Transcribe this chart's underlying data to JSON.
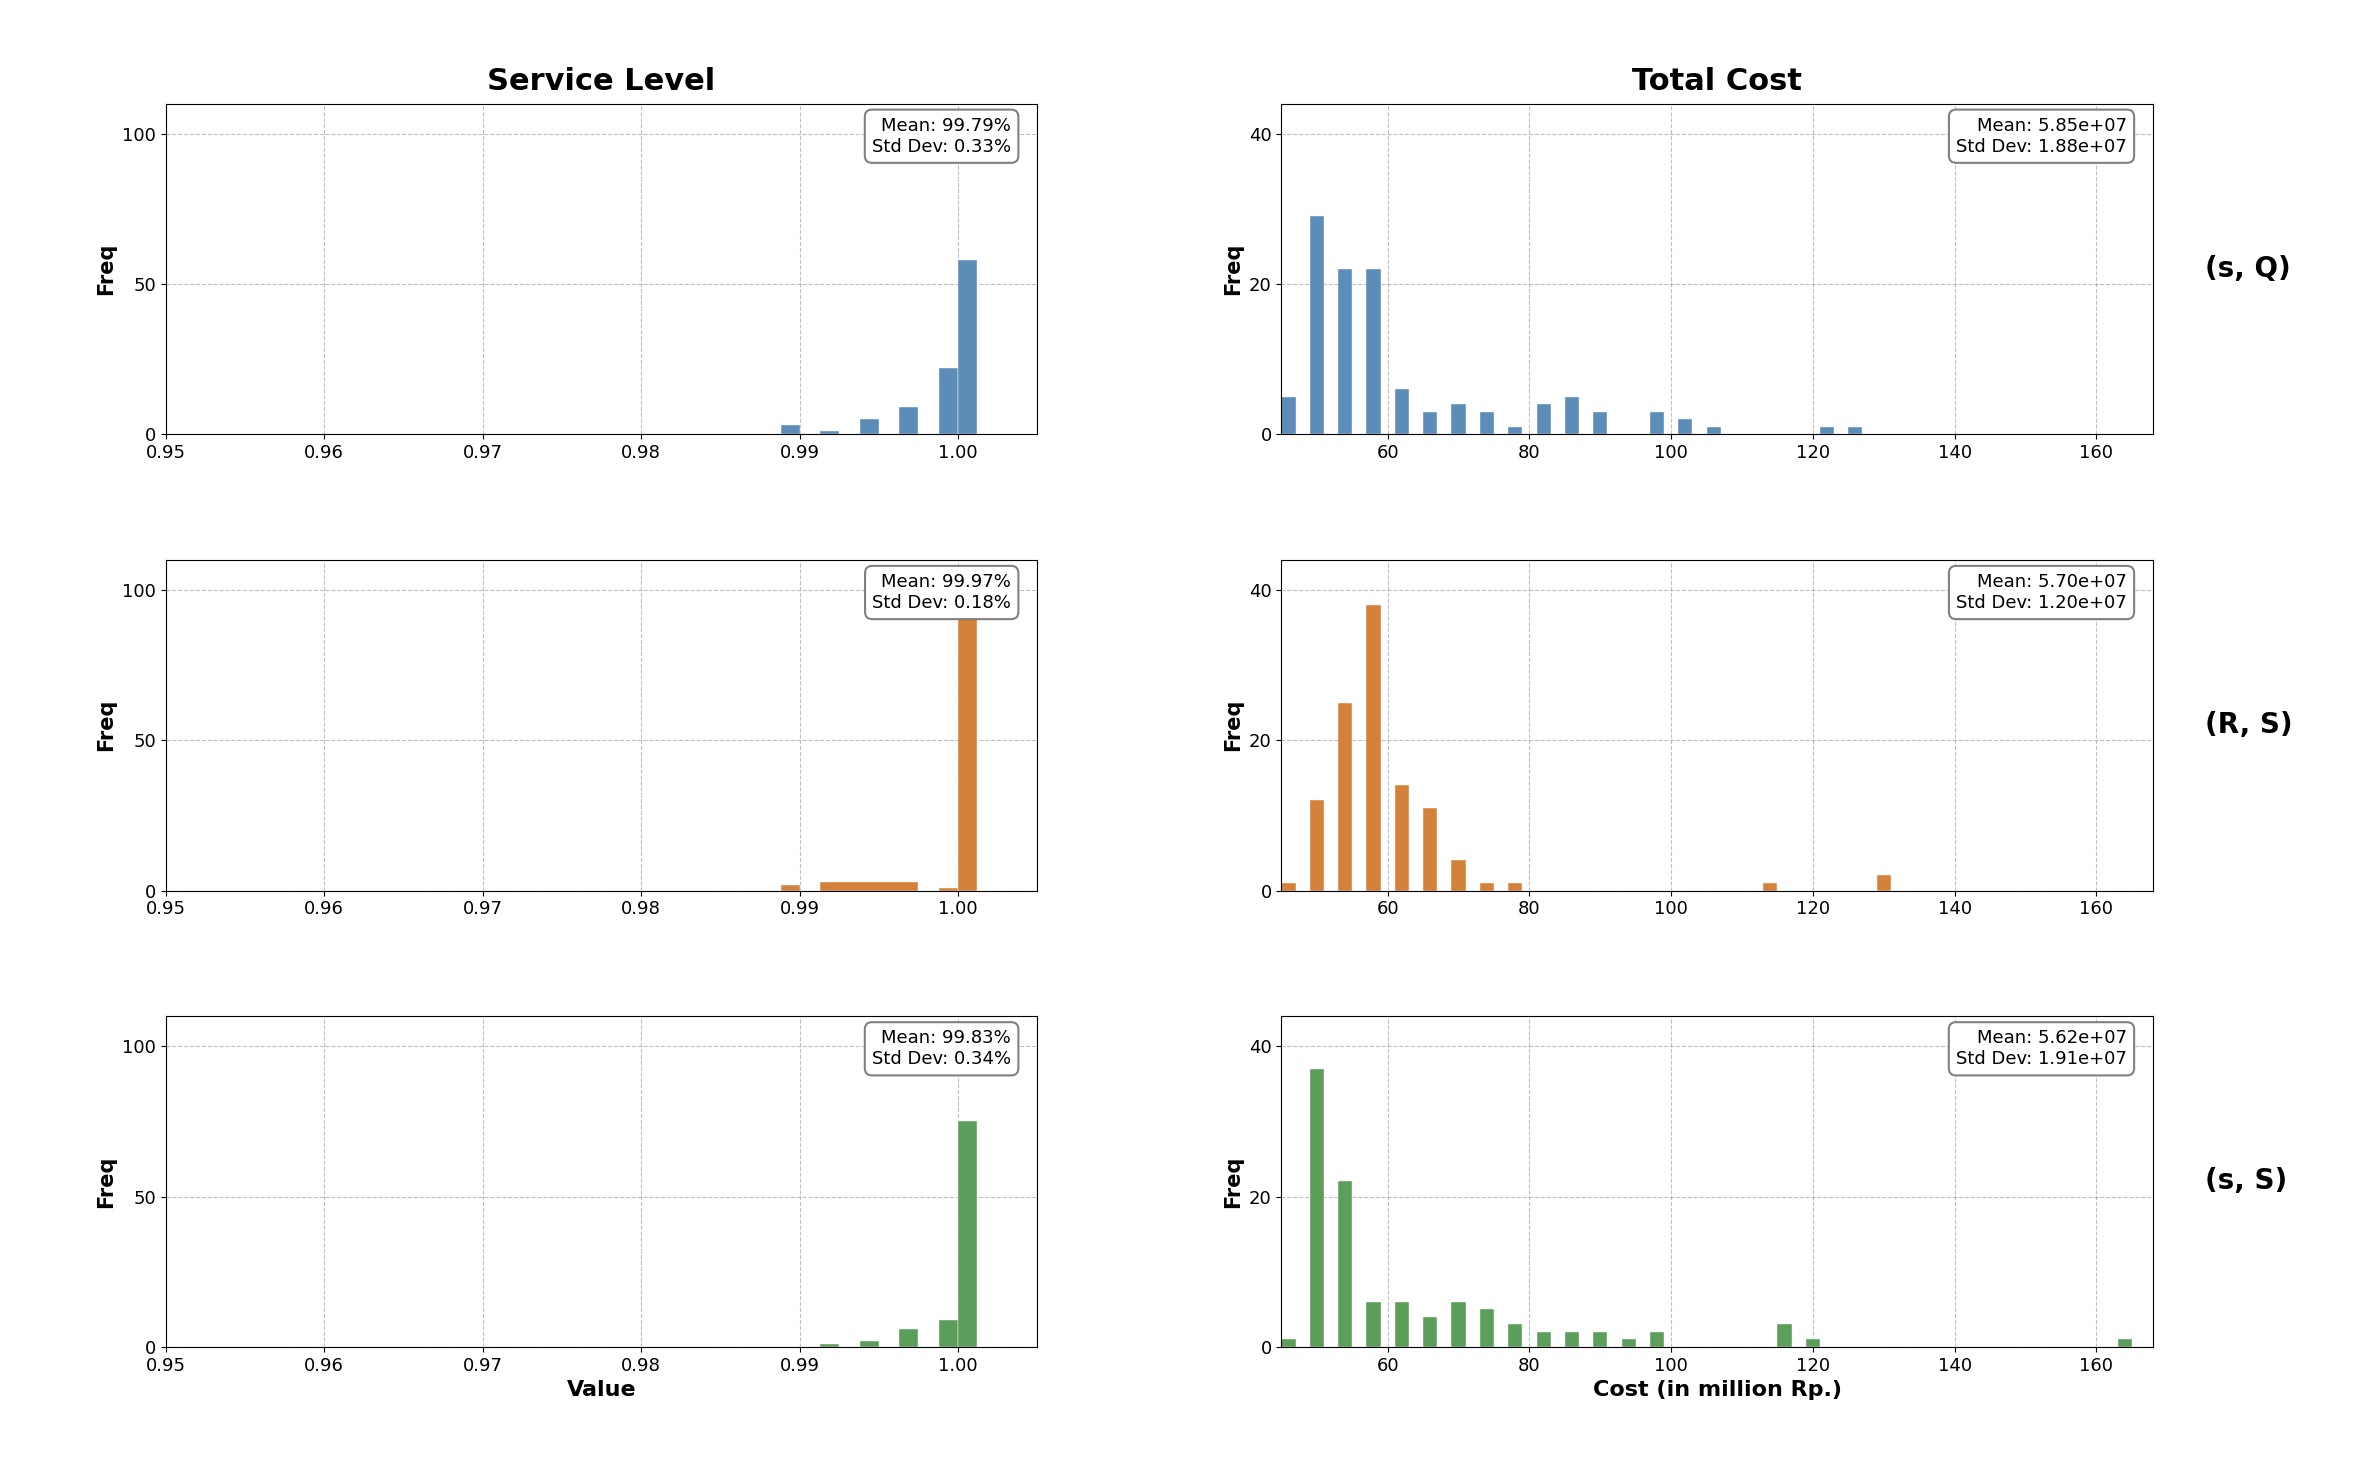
{
  "col_titles": [
    "Service Level",
    "Total Cost"
  ],
  "row_labels": [
    "(s, Q)",
    "(R, S)",
    "(s, S)"
  ],
  "colors": [
    "#5b8db8",
    "#d4813a",
    "#5a9e5a"
  ],
  "sl_xlim": [
    0.95,
    1.005
  ],
  "sl_xticks": [
    0.95,
    0.96,
    0.97,
    0.98,
    0.99,
    1.0
  ],
  "sl_ylim": [
    0,
    110
  ],
  "sl_yticks": [
    0,
    50,
    100
  ],
  "cost_xlim": [
    45,
    168
  ],
  "cost_xticks": [
    60,
    80,
    100,
    120,
    140,
    160
  ],
  "cost_ylim": [
    0,
    44
  ],
  "cost_yticks": [
    0,
    20,
    40
  ],
  "xlabel_sl": "Value",
  "xlabel_cost": "Cost (in million Rp.)",
  "ylabel": "Freq",
  "sl_annotations": [
    "Mean: 99.79%\nStd Dev: 0.33%",
    "Mean: 99.97%\nStd Dev: 0.18%",
    "Mean: 99.83%\nStd Dev: 0.34%"
  ],
  "cost_annotations": [
    "Mean: 5.85e+07\nStd Dev: 1.88e+07",
    "Mean: 5.70e+07\nStd Dev: 1.20e+07",
    "Mean: 5.62e+07\nStd Dev: 1.91e+07"
  ],
  "sl_hist_data": [
    {
      "bin_edges": [
        0.95,
        0.9525,
        0.955,
        0.9575,
        0.96,
        0.9625,
        0.965,
        0.9675,
        0.97,
        0.9725,
        0.975,
        0.9775,
        0.98,
        0.9825,
        0.985,
        0.9875,
        0.9888,
        0.99,
        0.9913,
        0.9925,
        0.9938,
        0.995,
        0.9963,
        0.9975,
        0.9988,
        1.0,
        1.0012
      ],
      "heights": [
        0,
        0,
        0,
        0,
        0,
        0,
        0,
        0,
        0,
        0,
        0,
        0,
        0,
        0,
        0,
        0,
        3,
        0,
        1,
        0,
        5,
        0,
        9,
        0,
        22,
        58,
        0
      ]
    },
    {
      "bin_edges": [
        0.95,
        0.9525,
        0.955,
        0.9575,
        0.96,
        0.9625,
        0.965,
        0.9675,
        0.97,
        0.9725,
        0.975,
        0.9775,
        0.98,
        0.9825,
        0.985,
        0.9875,
        0.9888,
        0.99,
        0.9913,
        0.9975,
        0.9988,
        1.0,
        1.0012
      ],
      "heights": [
        0,
        0,
        0,
        0,
        0,
        0,
        0,
        0,
        0,
        0,
        0,
        0,
        0,
        0,
        0,
        0,
        2,
        0,
        3,
        0,
        1,
        100,
        0
      ]
    },
    {
      "bin_edges": [
        0.95,
        0.9525,
        0.955,
        0.9575,
        0.96,
        0.9625,
        0.965,
        0.9675,
        0.97,
        0.9725,
        0.975,
        0.9775,
        0.98,
        0.9825,
        0.985,
        0.9875,
        0.9888,
        0.99,
        0.9913,
        0.9925,
        0.9938,
        0.995,
        0.9963,
        0.9975,
        0.9988,
        1.0,
        1.0012
      ],
      "heights": [
        0,
        0,
        0,
        0,
        0,
        0,
        0,
        0,
        0,
        0,
        0,
        0,
        0,
        0,
        0,
        0,
        0,
        0,
        1,
        0,
        2,
        0,
        6,
        0,
        9,
        75,
        0
      ]
    }
  ],
  "cost_hist_data": [
    {
      "bin_edges": [
        45,
        47,
        49,
        51,
        53,
        55,
        57,
        59,
        61,
        63,
        65,
        67,
        69,
        71,
        73,
        75,
        77,
        79,
        81,
        83,
        85,
        87,
        89,
        91,
        93,
        95,
        97,
        99,
        101,
        103,
        105,
        107,
        109,
        111,
        113,
        115,
        117,
        119,
        121,
        123,
        125,
        127,
        165,
        167
      ],
      "heights": [
        5,
        0,
        29,
        0,
        22,
        0,
        22,
        0,
        6,
        0,
        3,
        0,
        4,
        0,
        3,
        0,
        1,
        0,
        4,
        0,
        5,
        0,
        3,
        0,
        0,
        0,
        3,
        0,
        2,
        0,
        1,
        0,
        0,
        0,
        0,
        0,
        0,
        0,
        1,
        0,
        1,
        0,
        0
      ]
    },
    {
      "bin_edges": [
        45,
        47,
        49,
        51,
        53,
        55,
        57,
        59,
        61,
        63,
        65,
        67,
        69,
        71,
        73,
        75,
        77,
        79,
        81,
        83,
        113,
        115,
        129,
        131,
        143,
        145,
        167
      ],
      "heights": [
        1,
        0,
        12,
        0,
        25,
        0,
        38,
        0,
        14,
        0,
        11,
        0,
        4,
        0,
        1,
        0,
        1,
        0,
        0,
        0,
        1,
        0,
        2,
        0,
        0,
        0
      ]
    },
    {
      "bin_edges": [
        45,
        47,
        49,
        51,
        53,
        55,
        57,
        59,
        61,
        63,
        65,
        67,
        69,
        71,
        73,
        75,
        77,
        79,
        81,
        83,
        85,
        87,
        89,
        91,
        93,
        95,
        97,
        99,
        101,
        103,
        115,
        117,
        119,
        121,
        163,
        165,
        167
      ],
      "heights": [
        1,
        0,
        37,
        0,
        22,
        0,
        6,
        0,
        6,
        0,
        4,
        0,
        6,
        0,
        5,
        0,
        3,
        0,
        2,
        0,
        2,
        0,
        2,
        0,
        1,
        0,
        2,
        0,
        0,
        0,
        3,
        0,
        1,
        0,
        1,
        0
      ]
    }
  ]
}
